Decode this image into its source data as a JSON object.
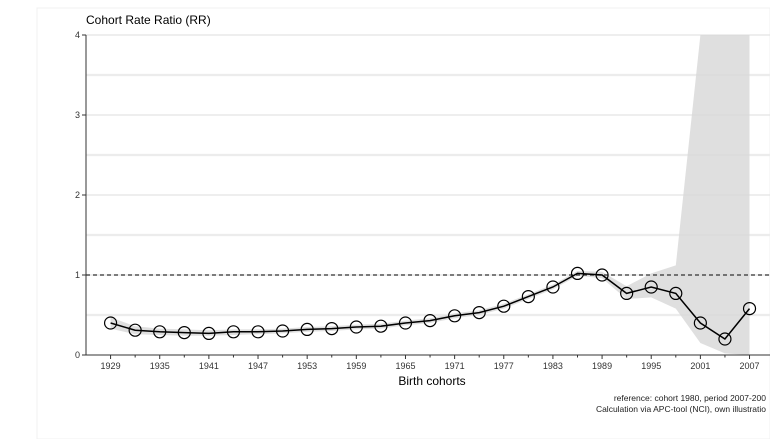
{
  "chart_data": {
    "type": "line",
    "ylabel": "Cohort Rate Ratio (RR)",
    "xlabel": "Birth cohorts",
    "x_ticks": [
      "1929",
      "1935",
      "1941",
      "1947",
      "1953",
      "1959",
      "1965",
      "1971",
      "1977",
      "1983",
      "1989",
      "1995",
      "2001",
      "2007"
    ],
    "y_ticks": [
      "0",
      "1",
      "2",
      "3",
      "4"
    ],
    "xlim": [
      1926,
      2009.5
    ],
    "ylim": [
      0,
      4
    ],
    "reference_line": 1,
    "grid": "horizontal",
    "series": [
      {
        "x": [
          1929,
          1932,
          1935,
          1938,
          1941,
          1944,
          1947,
          1950,
          1953,
          1956,
          1959,
          1962,
          1965,
          1968,
          1971,
          1974,
          1977,
          1980,
          1983,
          1986,
          1989,
          1992,
          1995,
          1998,
          2001,
          2004,
          2007
        ],
        "values": [
          0.4,
          0.31,
          0.29,
          0.28,
          0.27,
          0.29,
          0.29,
          0.3,
          0.32,
          0.33,
          0.35,
          0.36,
          0.4,
          0.43,
          0.49,
          0.53,
          0.61,
          0.73,
          0.85,
          1.02,
          1.0,
          0.77,
          0.85,
          0.77,
          0.4,
          0.2,
          0.58
        ],
        "ci_lower": [
          0.33,
          0.26,
          0.25,
          0.24,
          0.24,
          0.25,
          0.26,
          0.27,
          0.29,
          0.3,
          0.32,
          0.33,
          0.37,
          0.4,
          0.46,
          0.5,
          0.58,
          0.7,
          0.82,
          0.99,
          0.96,
          0.7,
          0.72,
          0.58,
          0.15,
          0.02,
          0.0
        ],
        "ci_upper": [
          0.47,
          0.36,
          0.33,
          0.32,
          0.31,
          0.32,
          0.32,
          0.33,
          0.35,
          0.36,
          0.38,
          0.39,
          0.43,
          0.46,
          0.52,
          0.56,
          0.64,
          0.76,
          0.88,
          1.05,
          1.04,
          0.86,
          1.02,
          1.12,
          4.0,
          4.0,
          4.0
        ]
      }
    ],
    "notes": [
      "reference: cohort 1980, period 2007-200",
      "Calculation via APC-tool (NCI), own illustratio"
    ]
  }
}
